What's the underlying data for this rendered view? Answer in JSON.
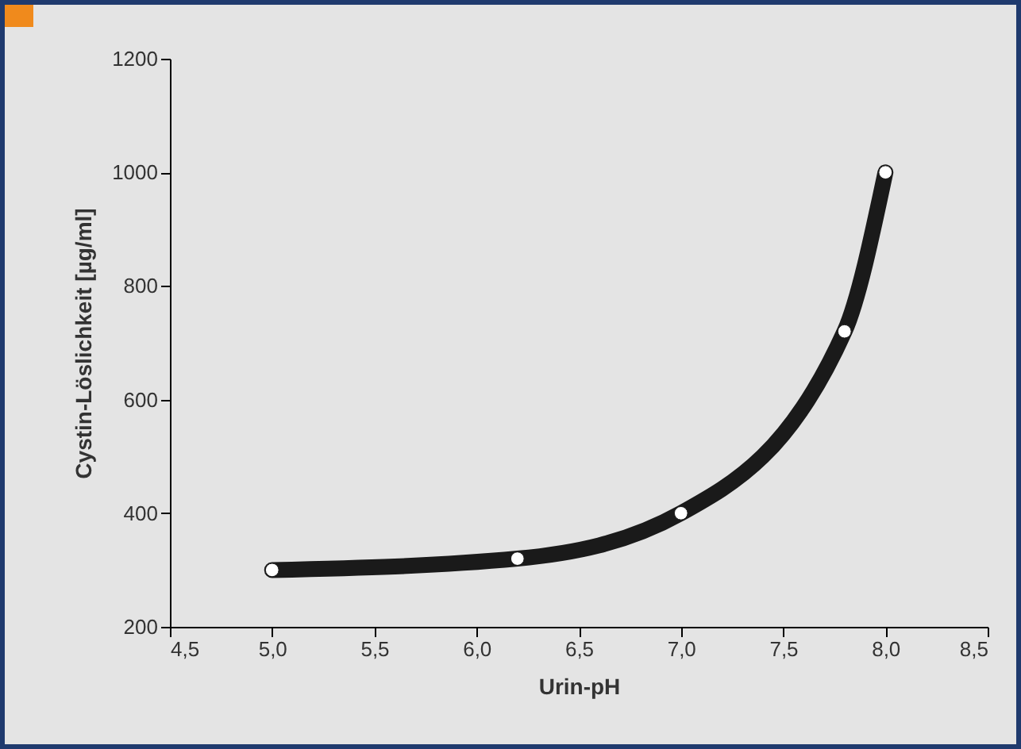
{
  "chart_data": {
    "type": "line",
    "xlabel": "Urin-pH",
    "ylabel": "Cystin-Löslichkeit [µg/ml]",
    "x": [
      5.0,
      6.2,
      7.0,
      7.8,
      8.0
    ],
    "series": [
      {
        "color": "#1a1a1a",
        "values": [
          300,
          320,
          400,
          720,
          1000
        ]
      }
    ],
    "xlim": [
      4.5,
      8.5
    ],
    "ylim": [
      200,
      1200
    ],
    "xticks": [
      {
        "value": 4.5,
        "label": "4,5"
      },
      {
        "value": 5,
        "label": "5,0"
      },
      {
        "value": 5.5,
        "label": "5,5"
      },
      {
        "value": 6,
        "label": "6,0"
      },
      {
        "value": 6.5,
        "label": "6,5"
      },
      {
        "value": 7,
        "label": "7,0"
      },
      {
        "value": 7.5,
        "label": "7,5"
      },
      {
        "value": 8,
        "label": "8,0"
      },
      {
        "value": 8.5,
        "label": "8,5"
      }
    ],
    "yticks": [
      200,
      400,
      600,
      800,
      1000,
      1200
    ],
    "marker": "circle",
    "grid": false
  }
}
